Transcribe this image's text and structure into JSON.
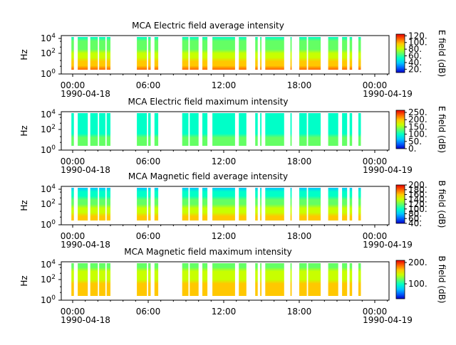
{
  "colormap": [
    "#0000c8",
    "#0064ff",
    "#00c8ff",
    "#00ffc8",
    "#64ff64",
    "#c8ff00",
    "#ffc800",
    "#ff6400",
    "#e60000"
  ],
  "chart_data": [
    {
      "type": "heatmap",
      "title": "MCA  Electric field average intensity",
      "ylabel": "Hz",
      "y_ticks": [
        "10^0",
        "10^2",
        "10^4"
      ],
      "x_ticks": [
        "00:00",
        "06:00",
        "12:00",
        "18:00",
        "00:00"
      ],
      "x_dates": [
        "1990-04-18",
        "",
        "",
        "",
        "1990-04-19"
      ],
      "colorbar_label": "E field (dB)",
      "colorbar_ticks": [
        "20.",
        "40.",
        "60.",
        "80.",
        "100.",
        "120."
      ],
      "colorbar_range": [
        10,
        125
      ],
      "low_level": 105,
      "high_level": 55,
      "data_intervals_hours": [
        [
          -0.1,
          0.1
        ],
        [
          0.4,
          1.2
        ],
        [
          1.4,
          2.0
        ],
        [
          2.1,
          2.6
        ],
        [
          2.7,
          3.0
        ],
        [
          5.1,
          5.9
        ],
        [
          6.0,
          6.2
        ],
        [
          6.5,
          6.8
        ],
        [
          8.7,
          9.2
        ],
        [
          9.3,
          10.0
        ],
        [
          10.3,
          10.7
        ],
        [
          11.1,
          12.9
        ],
        [
          13.2,
          13.8
        ],
        [
          14.5,
          14.7
        ],
        [
          14.9,
          15.0
        ],
        [
          15.3,
          16.8
        ],
        [
          17.3,
          17.4
        ],
        [
          18.0,
          18.6
        ],
        [
          18.7,
          19.7
        ],
        [
          20.3,
          21.1
        ],
        [
          21.4,
          21.8
        ],
        [
          22.0,
          22.2
        ],
        [
          22.7,
          22.9
        ]
      ]
    },
    {
      "type": "heatmap",
      "title": "MCA  Electric field maximum intensity",
      "ylabel": "Hz",
      "y_ticks": [
        "10^0",
        "10^2",
        "10^4"
      ],
      "x_ticks": [
        "00:00",
        "06:00",
        "12:00",
        "18:00",
        "00:00"
      ],
      "x_dates": [
        "1990-04-18",
        "",
        "",
        "",
        "1990-04-19"
      ],
      "colorbar_label": "E field (dB)",
      "colorbar_ticks": [
        "0.",
        "50.",
        "100.",
        "150.",
        "200.",
        "250."
      ],
      "colorbar_range": [
        0,
        265
      ],
      "low_level": 125,
      "high_level": 95,
      "data_intervals_hours": [
        [
          -0.1,
          0.1
        ],
        [
          0.4,
          1.2
        ],
        [
          1.4,
          2.0
        ],
        [
          2.1,
          2.6
        ],
        [
          2.7,
          3.0
        ],
        [
          5.1,
          5.9
        ],
        [
          6.0,
          6.2
        ],
        [
          6.5,
          6.8
        ],
        [
          8.7,
          9.2
        ],
        [
          9.3,
          10.0
        ],
        [
          10.3,
          10.7
        ],
        [
          11.1,
          12.9
        ],
        [
          13.2,
          13.8
        ],
        [
          14.5,
          14.7
        ],
        [
          14.9,
          15.0
        ],
        [
          15.3,
          16.8
        ],
        [
          17.3,
          17.4
        ],
        [
          18.0,
          18.6
        ],
        [
          18.7,
          19.7
        ],
        [
          20.3,
          21.1
        ],
        [
          21.4,
          21.8
        ],
        [
          22.0,
          22.2
        ],
        [
          22.7,
          22.9
        ]
      ]
    },
    {
      "type": "heatmap",
      "title": "MCA  Magnetic field average intensity",
      "ylabel": "Hz",
      "y_ticks": [
        "10^0",
        "10^2",
        "10^4"
      ],
      "x_ticks": [
        "00:00",
        "06:00",
        "12:00",
        "18:00",
        "00:00"
      ],
      "x_dates": [
        "1990-04-18",
        "",
        "",
        "",
        "1990-04-19"
      ],
      "colorbar_label": "B field (dB)",
      "colorbar_ticks": [
        "40.",
        "60.",
        "80.",
        "100.",
        "120.",
        "140.",
        "160.",
        "180.",
        "200."
      ],
      "colorbar_range": [
        40,
        200
      ],
      "low_level": 165,
      "high_level": 85,
      "data_intervals_hours": [
        [
          -0.1,
          0.1
        ],
        [
          0.4,
          1.2
        ],
        [
          1.4,
          2.0
        ],
        [
          2.1,
          2.6
        ],
        [
          2.7,
          3.0
        ],
        [
          5.1,
          5.9
        ],
        [
          6.0,
          6.2
        ],
        [
          6.5,
          6.8
        ],
        [
          8.7,
          9.2
        ],
        [
          9.3,
          10.0
        ],
        [
          10.3,
          10.7
        ],
        [
          11.1,
          12.9
        ],
        [
          13.2,
          13.8
        ],
        [
          14.5,
          14.7
        ],
        [
          14.9,
          15.0
        ],
        [
          15.3,
          16.8
        ],
        [
          17.3,
          17.4
        ],
        [
          18.0,
          18.6
        ],
        [
          18.7,
          19.7
        ],
        [
          20.3,
          21.1
        ],
        [
          21.4,
          21.8
        ],
        [
          22.0,
          22.2
        ],
        [
          22.7,
          22.9
        ]
      ]
    },
    {
      "type": "heatmap",
      "title": "MCA  Magnetic field maximum intensity",
      "ylabel": "Hz",
      "y_ticks": [
        "10^0",
        "10^2",
        "10^4"
      ],
      "x_ticks": [
        "00:00",
        "06:00",
        "12:00",
        "18:00",
        "00:00"
      ],
      "x_dates": [
        "1990-04-18",
        "",
        "",
        "",
        "1990-04-19"
      ],
      "colorbar_label": "B field (dB)",
      "colorbar_ticks": [
        "100.",
        "200."
      ],
      "colorbar_range": [
        30,
        210
      ],
      "low_level": 175,
      "high_level": 120,
      "data_intervals_hours": [
        [
          -0.1,
          0.1
        ],
        [
          0.4,
          1.2
        ],
        [
          1.4,
          2.0
        ],
        [
          2.1,
          2.6
        ],
        [
          2.7,
          3.0
        ],
        [
          5.1,
          5.9
        ],
        [
          6.0,
          6.2
        ],
        [
          6.5,
          6.8
        ],
        [
          8.7,
          9.2
        ],
        [
          9.3,
          10.0
        ],
        [
          10.3,
          10.7
        ],
        [
          11.1,
          12.9
        ],
        [
          13.2,
          13.8
        ],
        [
          14.5,
          14.7
        ],
        [
          14.9,
          15.0
        ],
        [
          15.3,
          16.8
        ],
        [
          17.3,
          17.4
        ],
        [
          18.0,
          18.6
        ],
        [
          18.7,
          19.7
        ],
        [
          20.3,
          21.1
        ],
        [
          21.4,
          21.8
        ],
        [
          22.0,
          22.2
        ],
        [
          22.7,
          22.9
        ]
      ]
    }
  ]
}
